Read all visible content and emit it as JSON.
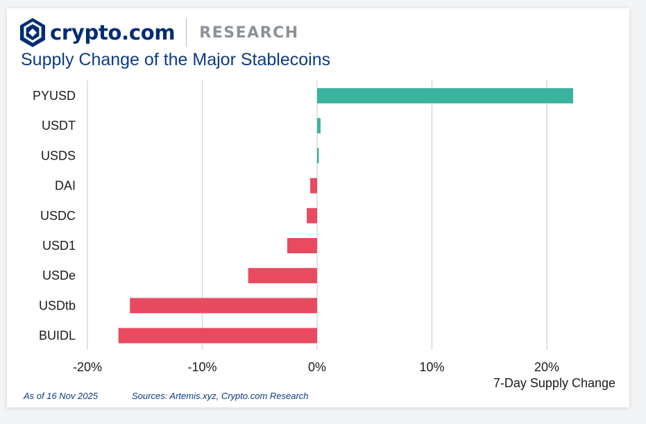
{
  "brand": {
    "name": "crypto.com",
    "section": "RESEARCH",
    "colors": {
      "navy": "#002d74",
      "gray": "#8c9199"
    }
  },
  "footer": {
    "as_of": "As of 16 Nov 2025",
    "sources": "Sources: Artemis.xyz, Crypto.com Research"
  },
  "chart_data": {
    "type": "bar",
    "orientation": "horizontal",
    "title": "Supply Change of the Major Stablecoins",
    "xlabel": "7-Day Supply Change",
    "ylabel": "",
    "categories": [
      "PYUSD",
      "USDT",
      "USDS",
      "DAI",
      "USDC",
      "USD1",
      "USDe",
      "USDtb",
      "BUIDL"
    ],
    "values": [
      22.3,
      0.3,
      0.15,
      -0.6,
      -0.9,
      -2.6,
      -6.0,
      -16.3,
      -17.3
    ],
    "xlim": [
      -20,
      25
    ],
    "xticks": [
      -20,
      -10,
      0,
      10,
      20
    ],
    "xtick_labels": [
      "-20%",
      "-10%",
      "0%",
      "10%",
      "20%"
    ],
    "grid": "vertical",
    "positive_color": "#3ab39f",
    "negative_color": "#e84a5f",
    "grid_color": "#d4d4d4"
  }
}
